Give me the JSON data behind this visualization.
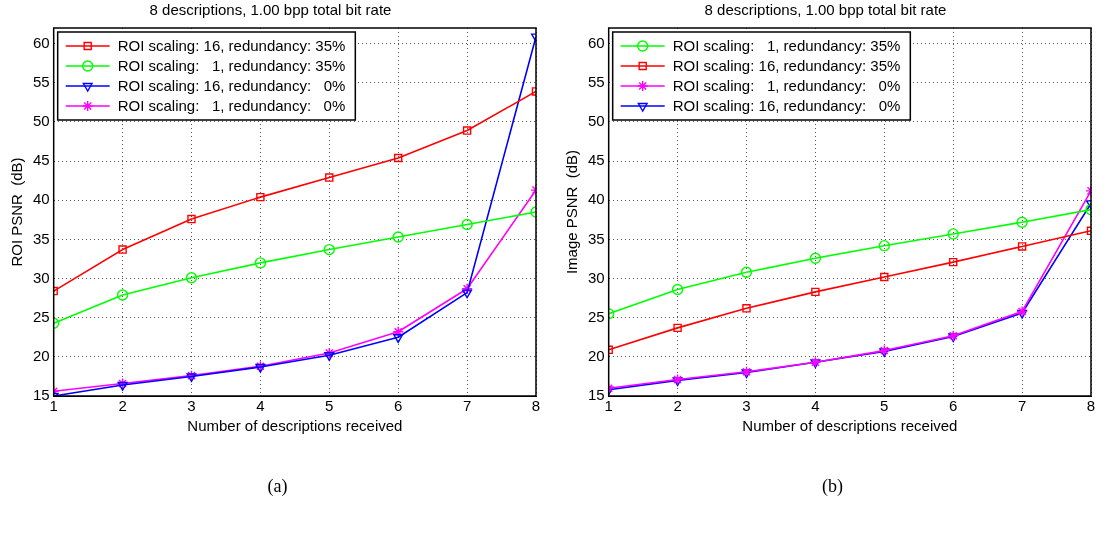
{
  "chart_data": [
    {
      "type": "line",
      "title": "8 descriptions, 1.00 bpp total bit rate",
      "xlabel": "Number of descriptions received",
      "ylabel": "ROI PSNR  (dB)",
      "x": [
        1,
        2,
        3,
        4,
        5,
        6,
        7,
        8
      ],
      "xlim": [
        1,
        8
      ],
      "xticks": [
        1,
        2,
        3,
        4,
        5,
        6,
        7,
        8
      ],
      "ylim": [
        15,
        62
      ],
      "yticks": [
        15,
        20,
        25,
        30,
        35,
        40,
        45,
        50,
        55,
        60
      ],
      "grid": true,
      "legend": "top left",
      "annotations": [
        "(a)"
      ],
      "series": [
        {
          "name": "ROI scaling: 16, redundancy: 35%",
          "color": "#ff0000",
          "marker": "square",
          "values": [
            28.4,
            33.7,
            37.6,
            40.4,
            42.9,
            45.4,
            48.9,
            53.9
          ]
        },
        {
          "name": "ROI scaling:   1, redundancy: 35%",
          "color": "#00ff00",
          "marker": "circle",
          "values": [
            24.3,
            27.9,
            30.1,
            32.0,
            33.7,
            35.3,
            36.9,
            38.5
          ]
        },
        {
          "name": "ROI scaling: 16, redundancy:   0%",
          "color": "#0000ff",
          "marker": "triangle",
          "values": [
            15.0,
            16.4,
            17.5,
            18.7,
            20.2,
            22.5,
            28.2,
            60.9
          ]
        },
        {
          "name": "ROI scaling:   1, redundancy:   0%",
          "color": "#ff00ff",
          "marker": "cross",
          "values": [
            15.6,
            16.6,
            17.6,
            18.8,
            20.5,
            23.2,
            28.7,
            41.3
          ]
        }
      ]
    },
    {
      "type": "line",
      "title": "8 descriptions, 1.00 bpp total bit rate",
      "xlabel": "Number of descriptions received",
      "ylabel": "Image PSNR  (dB)",
      "x": [
        1,
        2,
        3,
        4,
        5,
        6,
        7,
        8
      ],
      "xlim": [
        1,
        8
      ],
      "xticks": [
        1,
        2,
        3,
        4,
        5,
        6,
        7,
        8
      ],
      "ylim": [
        15,
        62
      ],
      "yticks": [
        15,
        20,
        25,
        30,
        35,
        40,
        45,
        50,
        55,
        60
      ],
      "grid": true,
      "legend": "top left",
      "annotations": [
        "(b)"
      ],
      "series": [
        {
          "name": "ROI scaling:   1, redundancy: 35%",
          "color": "#00ff00",
          "marker": "circle",
          "values": [
            25.5,
            28.6,
            30.8,
            32.6,
            34.2,
            35.7,
            37.2,
            38.8
          ]
        },
        {
          "name": "ROI scaling: 16, redundancy: 35%",
          "color": "#ff0000",
          "marker": "square",
          "values": [
            20.9,
            23.7,
            26.2,
            28.3,
            30.2,
            32.1,
            34.1,
            36.1
          ]
        },
        {
          "name": "ROI scaling:   1, redundancy:   0%",
          "color": "#ff00ff",
          "marker": "cross",
          "values": [
            16.0,
            17.1,
            18.1,
            19.3,
            20.8,
            22.7,
            25.8,
            41.2
          ]
        },
        {
          "name": "ROI scaling: 16, redundancy:   0%",
          "color": "#0000ff",
          "marker": "triangle",
          "values": [
            15.8,
            17.0,
            18.0,
            19.3,
            20.7,
            22.6,
            25.6,
            39.6
          ]
        }
      ]
    }
  ]
}
